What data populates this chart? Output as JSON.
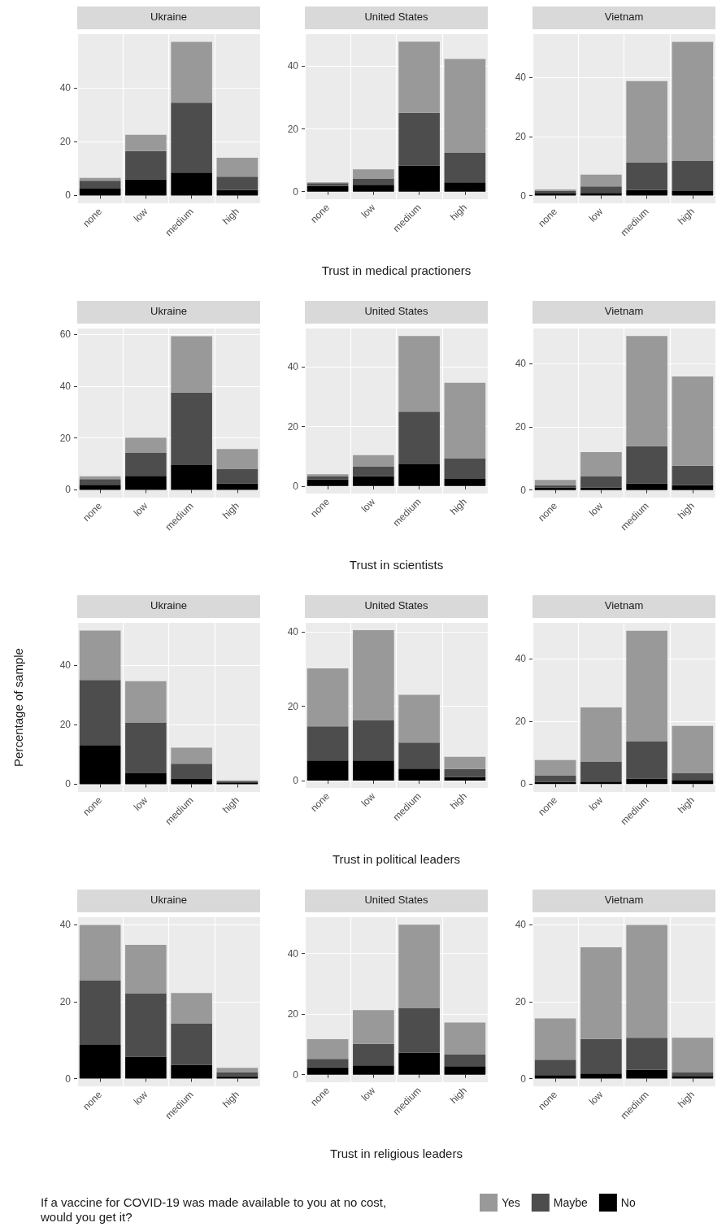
{
  "chart_data": [
    {
      "type": "bar",
      "stacked": true,
      "title": "Ukraine",
      "categories": [
        "none",
        "low",
        "medium",
        "high"
      ],
      "ylim": [
        -2.9,
        59.9
      ],
      "yticks": [
        0,
        20,
        40
      ],
      "grid": true,
      "series": [
        {
          "color": "#000000",
          "values": [
            2.5,
            6,
            8.5,
            2
          ]
        },
        {
          "color": "#4d4d4d",
          "values": [
            3,
            10.5,
            26,
            5
          ]
        },
        {
          "color": "#999999",
          "values": [
            1,
            6,
            22.5,
            7
          ]
        }
      ]
    },
    {
      "type": "bar",
      "stacked": true,
      "title": "United States",
      "categories": [
        "none",
        "low",
        "medium",
        "high"
      ],
      "xlabel": "Trust in medical practioners",
      "ylim": [
        -2.4,
        50.2
      ],
      "yticks": [
        0,
        20,
        40
      ],
      "grid": true,
      "series": [
        {
          "color": "#000000",
          "values": [
            1.8,
            2.2,
            8.3,
            3
          ]
        },
        {
          "color": "#4d4d4d",
          "values": [
            0.9,
            2,
            16.8,
            9.4
          ]
        },
        {
          "color": "#999999",
          "values": [
            0.3,
            2.9,
            22.7,
            29.9
          ]
        }
      ]
    },
    {
      "type": "bar",
      "stacked": true,
      "title": "Vietnam",
      "categories": [
        "none",
        "low",
        "medium",
        "high"
      ],
      "ylim": [
        -2.6,
        54.6
      ],
      "yticks": [
        0,
        20,
        40
      ],
      "grid": true,
      "series": [
        {
          "color": "#000000",
          "values": [
            0.7,
            0.9,
            1.9,
            1.5
          ]
        },
        {
          "color": "#4d4d4d",
          "values": [
            0.9,
            2.2,
            9.3,
            10.2
          ]
        },
        {
          "color": "#999999",
          "values": [
            0.5,
            4,
            27.5,
            40.3
          ]
        }
      ]
    },
    {
      "type": "bar",
      "stacked": true,
      "title": "Ukraine",
      "categories": [
        "none",
        "low",
        "medium",
        "high"
      ],
      "ylim": [
        -3,
        62.2
      ],
      "yticks": [
        0,
        20,
        40,
        60
      ],
      "grid": true,
      "series": [
        {
          "color": "#000000",
          "values": [
            1.9,
            5.4,
            9.5,
            2.5
          ]
        },
        {
          "color": "#4d4d4d",
          "values": [
            2.2,
            9,
            28,
            5.6
          ]
        },
        {
          "color": "#999999",
          "values": [
            1.1,
            5.7,
            21.7,
            7.6
          ]
        }
      ]
    },
    {
      "type": "bar",
      "stacked": true,
      "title": "United States",
      "categories": [
        "none",
        "low",
        "medium",
        "high"
      ],
      "xlabel": "Trust in scientists",
      "ylim": [
        -2.5,
        52.9
      ],
      "yticks": [
        0,
        20,
        40
      ],
      "grid": true,
      "series": [
        {
          "color": "#000000",
          "values": [
            2.2,
            3.3,
            7.3,
            2.4
          ]
        },
        {
          "color": "#4d4d4d",
          "values": [
            1,
            3.2,
            17.7,
            7
          ]
        },
        {
          "color": "#999999",
          "values": [
            0.8,
            3.9,
            25.4,
            25.3
          ]
        }
      ]
    },
    {
      "type": "bar",
      "stacked": true,
      "title": "Vietnam",
      "categories": [
        "none",
        "low",
        "medium",
        "high"
      ],
      "ylim": [
        -2.4,
        51.2
      ],
      "yticks": [
        0,
        20,
        40
      ],
      "grid": true,
      "series": [
        {
          "color": "#000000",
          "values": [
            0.8,
            0.8,
            2.1,
            1.5
          ]
        },
        {
          "color": "#4d4d4d",
          "values": [
            0.7,
            3.5,
            11.8,
            6.2
          ]
        },
        {
          "color": "#999999",
          "values": [
            1.7,
            7.7,
            34.9,
            28.3
          ]
        }
      ]
    },
    {
      "type": "bar",
      "stacked": true,
      "title": "Ukraine",
      "categories": [
        "none",
        "low",
        "medium",
        "high"
      ],
      "ylabel": "Percentage of sample",
      "ylim": [
        -2.6,
        54.3
      ],
      "yticks": [
        0,
        20,
        40
      ],
      "grid": true,
      "series": [
        {
          "color": "#000000",
          "values": [
            13,
            3.7,
            1.8,
            0.6
          ]
        },
        {
          "color": "#4d4d4d",
          "values": [
            22.1,
            17.1,
            5.1,
            0.4
          ]
        },
        {
          "color": "#999999",
          "values": [
            16.6,
            13.9,
            5.4,
            0.3
          ]
        }
      ]
    },
    {
      "type": "bar",
      "stacked": true,
      "title": "United States",
      "categories": [
        "none",
        "low",
        "medium",
        "high"
      ],
      "xlabel": "Trust in political leaders",
      "ylim": [
        -2,
        42.5
      ],
      "yticks": [
        0,
        20,
        40
      ],
      "grid": true,
      "series": [
        {
          "color": "#000000",
          "values": [
            5.4,
            5.4,
            3.2,
            0.9
          ]
        },
        {
          "color": "#4d4d4d",
          "values": [
            9.2,
            10.8,
            7,
            2.2
          ]
        },
        {
          "color": "#999999",
          "values": [
            15.6,
            24.3,
            12.9,
            3.3
          ]
        }
      ]
    },
    {
      "type": "bar",
      "stacked": true,
      "title": "Vietnam",
      "categories": [
        "none",
        "low",
        "medium",
        "high"
      ],
      "ylim": [
        -2.5,
        51.5
      ],
      "yticks": [
        0,
        20,
        40
      ],
      "grid": true,
      "series": [
        {
          "color": "#000000",
          "values": [
            0.7,
            0.8,
            1.8,
            1.3
          ]
        },
        {
          "color": "#4d4d4d",
          "values": [
            2.1,
            6.3,
            11.8,
            2.3
          ]
        },
        {
          "color": "#999999",
          "values": [
            4.9,
            17.4,
            35.4,
            15
          ]
        }
      ]
    },
    {
      "type": "bar",
      "stacked": true,
      "title": "Ukraine",
      "categories": [
        "none",
        "low",
        "medium",
        "high"
      ],
      "ylim": [
        -2,
        42
      ],
      "yticks": [
        0,
        20,
        40
      ],
      "grid": true,
      "series": [
        {
          "color": "#000000",
          "values": [
            8.8,
            5.7,
            3.6,
            0.6
          ]
        },
        {
          "color": "#4d4d4d",
          "values": [
            16.8,
            16.5,
            10.7,
            1.1
          ]
        },
        {
          "color": "#999999",
          "values": [
            14.4,
            12.6,
            8,
            1.1
          ]
        }
      ]
    },
    {
      "type": "bar",
      "stacked": true,
      "title": "United States",
      "categories": [
        "none",
        "low",
        "medium",
        "high"
      ],
      "xlabel": "Trust in religious leaders",
      "ylim": [
        -2.5,
        52
      ],
      "yticks": [
        0,
        20,
        40
      ],
      "grid": true,
      "series": [
        {
          "color": "#000000",
          "values": [
            2.4,
            3.1,
            7.2,
            2.8
          ]
        },
        {
          "color": "#4d4d4d",
          "values": [
            2.8,
            7.1,
            14.7,
            3.8
          ]
        },
        {
          "color": "#999999",
          "values": [
            6.5,
            11.1,
            27.6,
            10.6
          ]
        }
      ]
    },
    {
      "type": "bar",
      "stacked": true,
      "title": "Vietnam",
      "categories": [
        "none",
        "low",
        "medium",
        "high"
      ],
      "ylim": [
        -2,
        41.9
      ],
      "yticks": [
        0,
        20,
        40
      ],
      "grid": true,
      "legend": "bottom",
      "legend_title": "If a vaccine for COVID-19 was made available to you at no cost, would you get it?",
      "series": [
        {
          "name": "No",
          "color": "#000000",
          "values": [
            0.9,
            1.3,
            2.3,
            0.7
          ]
        },
        {
          "name": "Maybe",
          "color": "#4d4d4d",
          "values": [
            4,
            9,
            8.3,
            0.9
          ]
        },
        {
          "name": "Yes",
          "color": "#999999",
          "values": [
            10.7,
            23.8,
            29.3,
            9
          ]
        }
      ]
    }
  ]
}
